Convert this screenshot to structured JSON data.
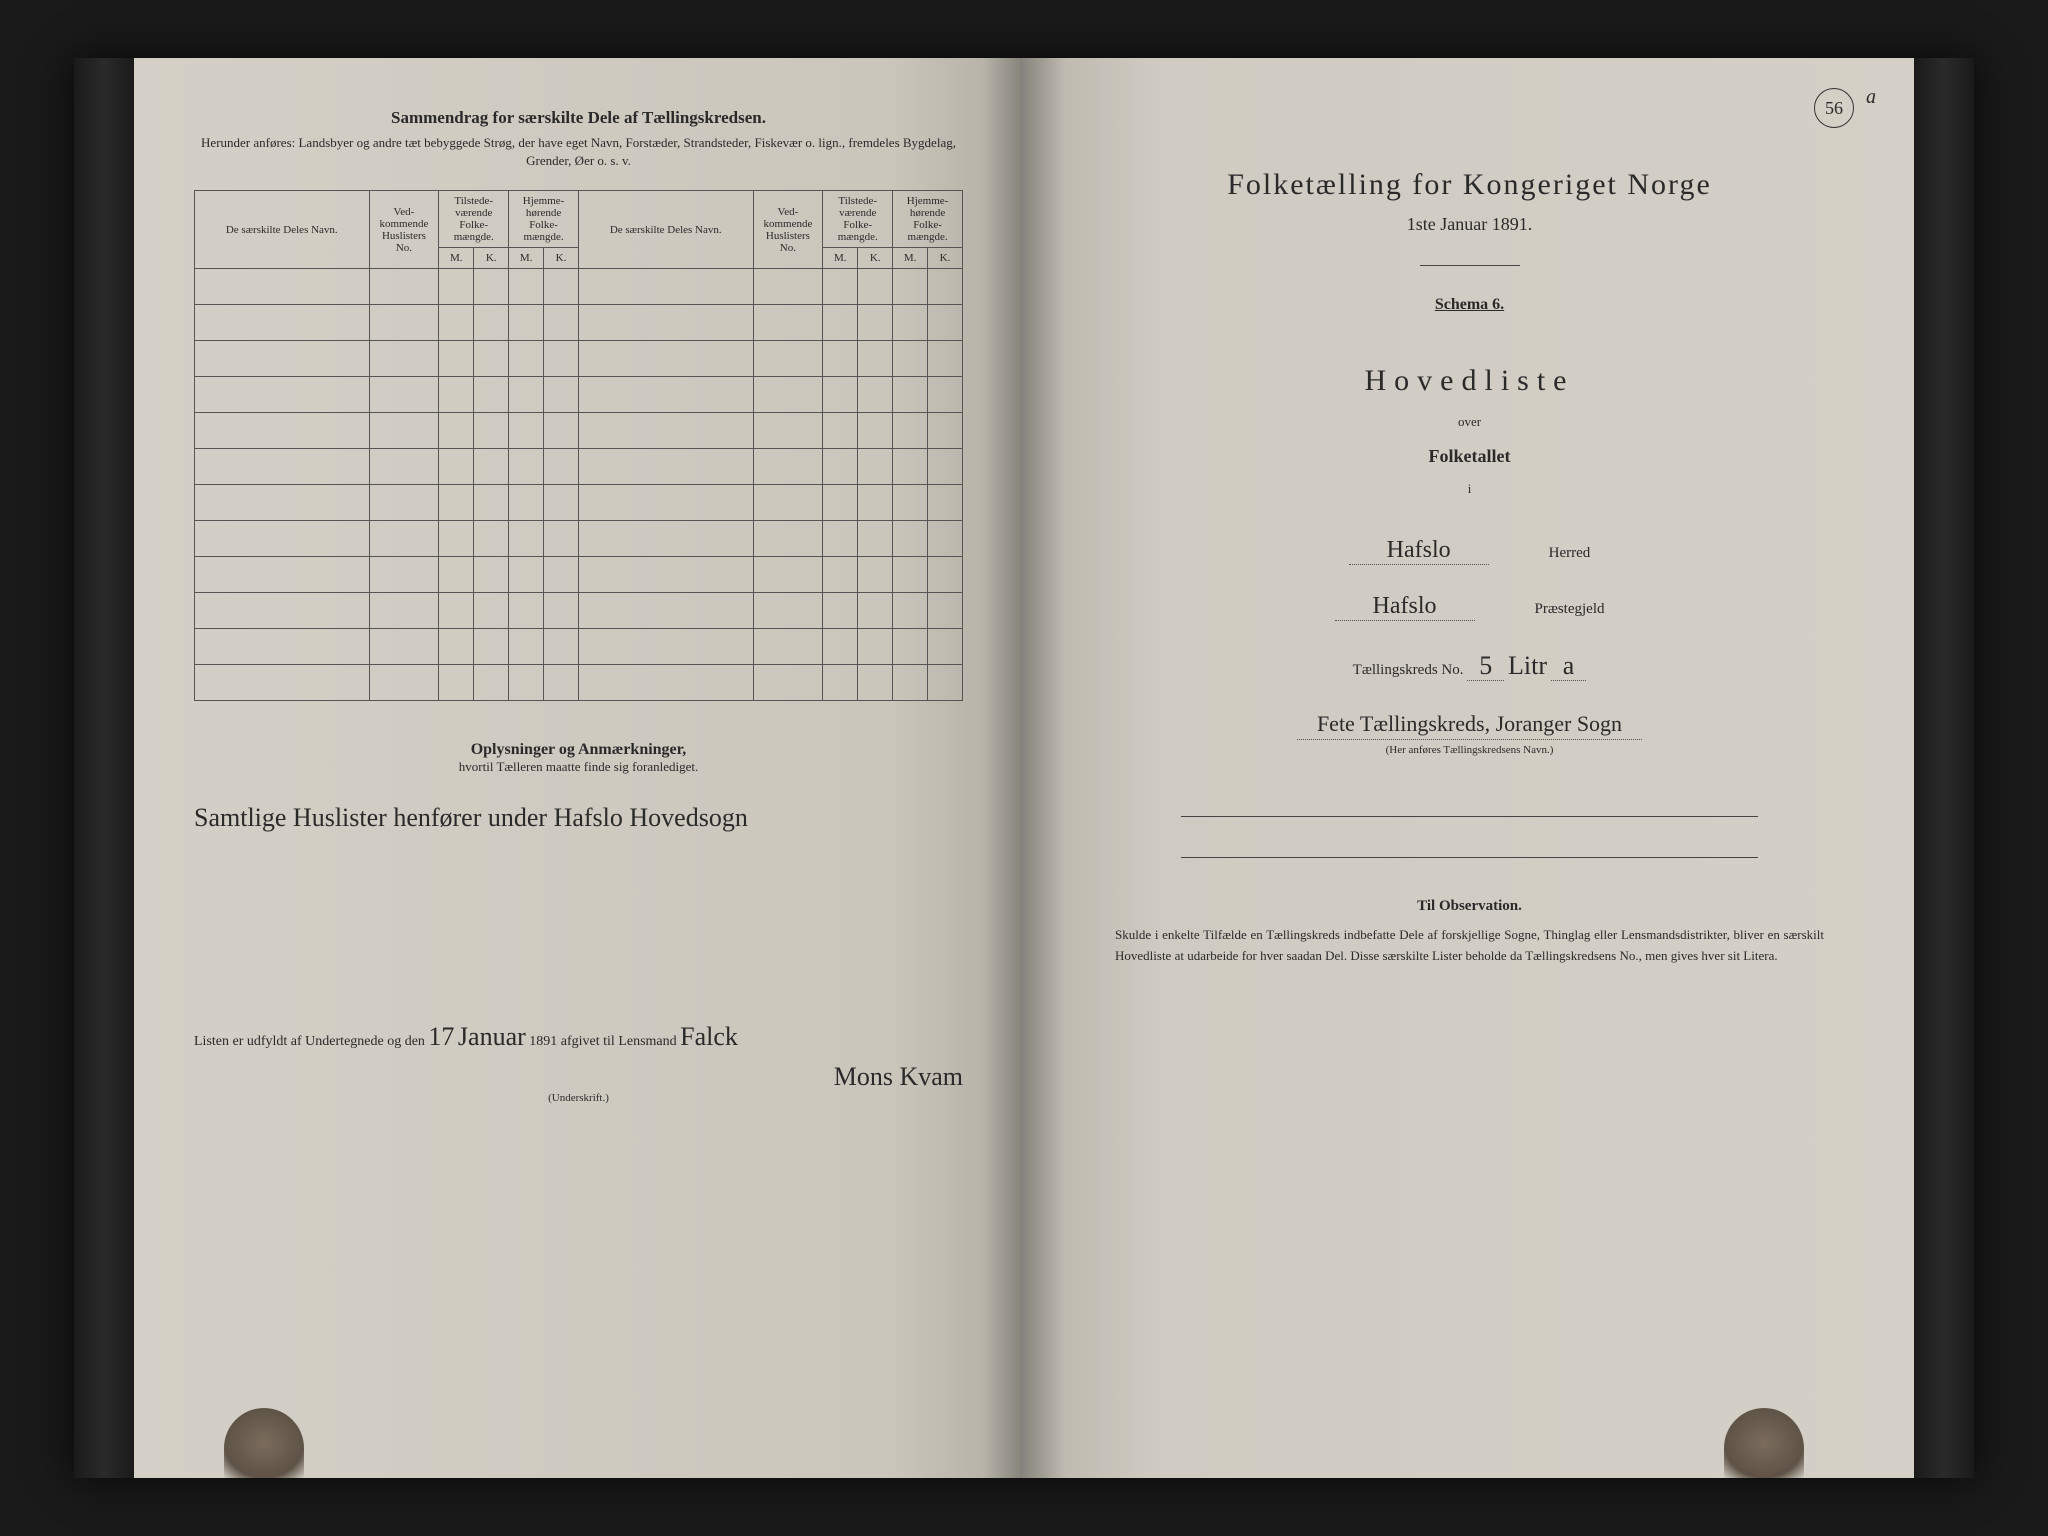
{
  "left": {
    "header_title": "Sammendrag for særskilte Dele af Tællingskredsen.",
    "header_sub": "Herunder anføres: Landsbyer og andre tæt bebyggede Strøg, der have eget Navn, Forstæder, Strandsteder, Fiskevær o. lign., fremdeles Bygdelag, Grender, Øer o. s. v.",
    "table": {
      "col_name": "De særskilte Deles Navn.",
      "col_huslister": "Ved-kommende Huslisters No.",
      "col_tilstede": "Tilstede-værende Folke-mængde.",
      "col_hjemme": "Hjemme-hørende Folke-mængde.",
      "m": "M.",
      "k": "K.",
      "empty_rows": 12
    },
    "notes_title": "Oplysninger og Anmærkninger,",
    "notes_sub": "hvortil Tælleren maatte finde sig foranlediget.",
    "handwritten_note": "Samtlige Huslister henfører under Hafslo Hovedsogn",
    "signature_prefix": "Listen er udfyldt af Undertegnede og den",
    "signature_day": "17",
    "signature_month": "Januar",
    "signature_year_suffix": "1891 afgivet til Lensmand",
    "signature_name1": "Falck",
    "signature_name2": "Mons Kvam",
    "signature_label": "(Underskrift.)"
  },
  "right": {
    "page_no": "56",
    "page_suffix": "a",
    "title": "Folketælling for Kongeriget Norge",
    "date": "1ste Januar 1891.",
    "schema": "Schema 6.",
    "hovedliste": "Hovedliste",
    "over": "over",
    "folketallet": "Folketallet",
    "i": "i",
    "herred_value": "Hafslo",
    "herred_label": "Herred",
    "prestegjeld_value": "Hafslo",
    "prestegjeld_label": "Præstegjeld",
    "kreds_label": "Tællingskreds No.",
    "kreds_no": "5",
    "kreds_litra_label": "Litr",
    "kreds_litra": "a",
    "kreds_name": "Fete Tællingskreds, Joranger Sogn",
    "kreds_name_sub": "(Her anføres Tællingskredsens Navn.)",
    "obs_title": "Til Observation.",
    "obs_body": "Skulde i enkelte Tilfælde en Tællingskreds indbefatte Dele af forskjellige Sogne, Thinglag eller Lensmandsdistrikter, bliver en særskilt Hovedliste at udarbeide for hver saadan Del. Disse særskilte Lister beholde da Tællingskredsens No., men gives hver sit Litera."
  }
}
